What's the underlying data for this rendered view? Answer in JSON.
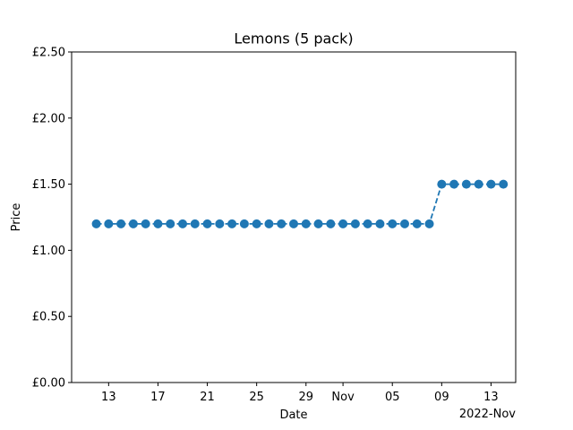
{
  "chart_data": {
    "type": "line",
    "title": "Lemons (5 pack)",
    "xlabel": "Date",
    "ylabel": "Price",
    "x_offset_label": "2022-Nov",
    "ylim": [
      0,
      2.5
    ],
    "yticks": [
      {
        "value": 0.0,
        "label": "£0.00"
      },
      {
        "value": 0.5,
        "label": "£0.50"
      },
      {
        "value": 1.0,
        "label": "£1.00"
      },
      {
        "value": 1.5,
        "label": "£1.50"
      },
      {
        "value": 2.0,
        "label": "£2.00"
      },
      {
        "value": 2.5,
        "label": "£2.50"
      }
    ],
    "xlim": [
      "2022-10-10",
      "2022-11-15"
    ],
    "xticks": [
      {
        "date": "2022-10-13",
        "label": "13"
      },
      {
        "date": "2022-10-17",
        "label": "17"
      },
      {
        "date": "2022-10-21",
        "label": "21"
      },
      {
        "date": "2022-10-25",
        "label": "25"
      },
      {
        "date": "2022-10-29",
        "label": "29"
      },
      {
        "date": "2022-11-01",
        "label": "Nov"
      },
      {
        "date": "2022-11-05",
        "label": "05"
      },
      {
        "date": "2022-11-09",
        "label": "09"
      },
      {
        "date": "2022-11-13",
        "label": "13"
      }
    ],
    "grid": false,
    "series": [
      {
        "color": "#1f77b4",
        "line_style": "dashed",
        "marker": "circle",
        "points": [
          {
            "x": "2022-10-12",
            "y": 1.2
          },
          {
            "x": "2022-10-13",
            "y": 1.2
          },
          {
            "x": "2022-10-14",
            "y": 1.2
          },
          {
            "x": "2022-10-15",
            "y": 1.2
          },
          {
            "x": "2022-10-16",
            "y": 1.2
          },
          {
            "x": "2022-10-17",
            "y": 1.2
          },
          {
            "x": "2022-10-18",
            "y": 1.2
          },
          {
            "x": "2022-10-19",
            "y": 1.2
          },
          {
            "x": "2022-10-20",
            "y": 1.2
          },
          {
            "x": "2022-10-21",
            "y": 1.2
          },
          {
            "x": "2022-10-22",
            "y": 1.2
          },
          {
            "x": "2022-10-23",
            "y": 1.2
          },
          {
            "x": "2022-10-24",
            "y": 1.2
          },
          {
            "x": "2022-10-25",
            "y": 1.2
          },
          {
            "x": "2022-10-26",
            "y": 1.2
          },
          {
            "x": "2022-10-27",
            "y": 1.2
          },
          {
            "x": "2022-10-28",
            "y": 1.2
          },
          {
            "x": "2022-10-29",
            "y": 1.2
          },
          {
            "x": "2022-10-30",
            "y": 1.2
          },
          {
            "x": "2022-10-31",
            "y": 1.2
          },
          {
            "x": "2022-11-01",
            "y": 1.2
          },
          {
            "x": "2022-11-02",
            "y": 1.2
          },
          {
            "x": "2022-11-03",
            "y": 1.2
          },
          {
            "x": "2022-11-04",
            "y": 1.2
          },
          {
            "x": "2022-11-05",
            "y": 1.2
          },
          {
            "x": "2022-11-06",
            "y": 1.2
          },
          {
            "x": "2022-11-07",
            "y": 1.2
          },
          {
            "x": "2022-11-08",
            "y": 1.2
          },
          {
            "x": "2022-11-09",
            "y": 1.5
          },
          {
            "x": "2022-11-10",
            "y": 1.5
          },
          {
            "x": "2022-11-11",
            "y": 1.5
          },
          {
            "x": "2022-11-12",
            "y": 1.5
          },
          {
            "x": "2022-11-13",
            "y": 1.5
          },
          {
            "x": "2022-11-14",
            "y": 1.5
          }
        ]
      }
    ]
  }
}
